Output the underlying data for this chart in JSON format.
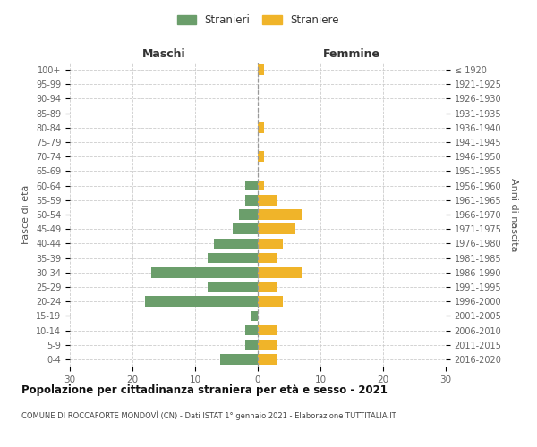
{
  "age_groups": [
    "0-4",
    "5-9",
    "10-14",
    "15-19",
    "20-24",
    "25-29",
    "30-34",
    "35-39",
    "40-44",
    "45-49",
    "50-54",
    "55-59",
    "60-64",
    "65-69",
    "70-74",
    "75-79",
    "80-84",
    "85-89",
    "90-94",
    "95-99",
    "100+"
  ],
  "birth_years": [
    "2016-2020",
    "2011-2015",
    "2006-2010",
    "2001-2005",
    "1996-2000",
    "1991-1995",
    "1986-1990",
    "1981-1985",
    "1976-1980",
    "1971-1975",
    "1966-1970",
    "1961-1965",
    "1956-1960",
    "1951-1955",
    "1946-1950",
    "1941-1945",
    "1936-1940",
    "1931-1935",
    "1926-1930",
    "1921-1925",
    "≤ 1920"
  ],
  "males": [
    6,
    2,
    2,
    1,
    18,
    8,
    17,
    8,
    7,
    4,
    3,
    2,
    2,
    0,
    0,
    0,
    0,
    0,
    0,
    0,
    0
  ],
  "females": [
    3,
    3,
    3,
    0,
    4,
    3,
    7,
    3,
    4,
    6,
    7,
    3,
    1,
    0,
    1,
    0,
    1,
    0,
    0,
    0,
    1
  ],
  "male_color": "#6b9e6b",
  "female_color": "#f0b429",
  "title": "Popolazione per cittadinanza straniera per età e sesso - 2021",
  "subtitle": "COMUNE DI ROCCAFORTE MONDOVÌ (CN) - Dati ISTAT 1° gennaio 2021 - Elaborazione TUTTITALIA.IT",
  "xlabel_left": "Maschi",
  "xlabel_right": "Femmine",
  "ylabel_left": "Fasce di età",
  "ylabel_right": "Anni di nascita",
  "legend_male": "Stranieri",
  "legend_female": "Straniere",
  "xlim": 30,
  "background_color": "#ffffff",
  "grid_color": "#cccccc"
}
